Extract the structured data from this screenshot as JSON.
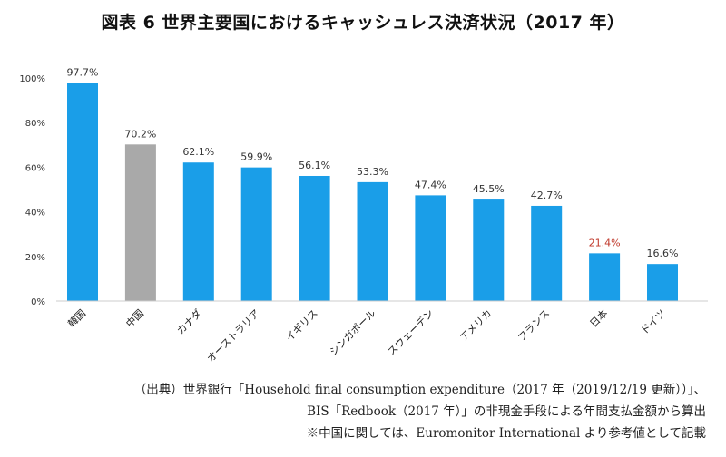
{
  "title": "図表 6 世界主要国におけるキャッシュレス決済状況（2017 年）",
  "notes": {
    "line1": "（出典）世界銀行「Household final consumption expenditure（2017 年（2019/12/19 更新））」、",
    "line2": "BIS「Redbook（2017 年）」の非現金手段による年間支払金額から算出",
    "line3": "※中国に関しては、Euromonitor International より参考値として記載"
  },
  "colors": {
    "bar_default": "#1a9ee8",
    "bar_china": "#a9a9a9",
    "label_default": "#333333",
    "label_japan": "#c0392b",
    "axis": "#333333"
  },
  "chart_data": {
    "type": "bar",
    "categories": [
      "韓国",
      "中国",
      "カナダ",
      "オーストラリア",
      "イギリス",
      "シンガポール",
      "スウェーデン",
      "アメリカ",
      "フランス",
      "日本",
      "ドイツ"
    ],
    "values": [
      97.7,
      70.2,
      62.1,
      59.9,
      56.1,
      53.3,
      47.4,
      45.5,
      42.7,
      21.4,
      16.6
    ],
    "data_labels": [
      "97.7%",
      "70.2%",
      "62.1%",
      "59.9%",
      "56.1%",
      "53.3%",
      "47.4%",
      "45.5%",
      "42.7%",
      "21.4%",
      "16.6%"
    ],
    "bar_colors": [
      "#1a9ee8",
      "#a9a9a9",
      "#1a9ee8",
      "#1a9ee8",
      "#1a9ee8",
      "#1a9ee8",
      "#1a9ee8",
      "#1a9ee8",
      "#1a9ee8",
      "#1a9ee8",
      "#1a9ee8"
    ],
    "label_colors": [
      "#333333",
      "#333333",
      "#333333",
      "#333333",
      "#333333",
      "#333333",
      "#333333",
      "#333333",
      "#333333",
      "#c0392b",
      "#333333"
    ],
    "yticks": [
      "0%",
      "20%",
      "40%",
      "60%",
      "80%",
      "100%"
    ],
    "ytick_values": [
      0,
      20,
      40,
      60,
      80,
      100
    ],
    "ylim": [
      0,
      100
    ],
    "xlabel": "",
    "ylabel": "",
    "grid": false,
    "legend": "none"
  }
}
